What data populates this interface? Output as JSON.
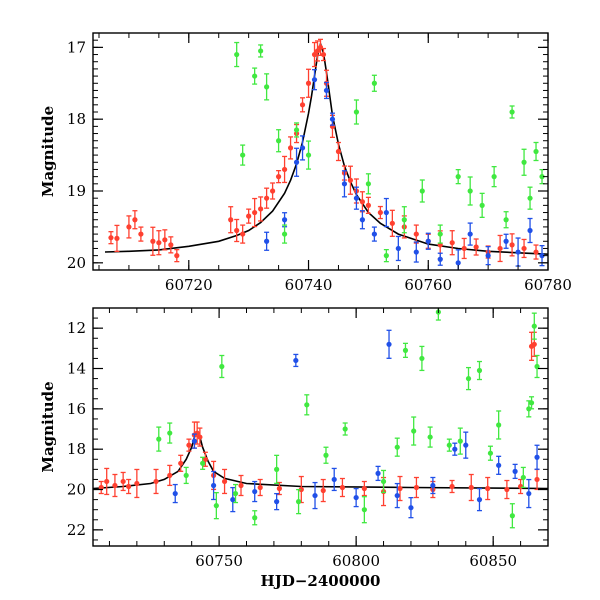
{
  "chart_data": [
    {
      "type": "scatter",
      "title": "",
      "xlabel": "",
      "ylabel": "Magnitude",
      "xlim": [
        60704,
        60780
      ],
      "ylim": [
        20.1,
        16.8
      ],
      "y_inverted": true,
      "x_ticks": [
        60720,
        60740,
        60760,
        60780
      ],
      "y_ticks": [
        17,
        18,
        19,
        20
      ],
      "model_curve": {
        "name": "",
        "color": "#000000",
        "x": [
          60706,
          60710,
          60715,
          60720,
          60725,
          60728,
          60730,
          60732,
          60734,
          60736,
          60737,
          60738,
          60739,
          60740,
          60740.5,
          60741,
          60741.5,
          60742,
          60742.5,
          60743,
          60743.5,
          60744,
          60745,
          60746,
          60747,
          60748,
          60750,
          60752,
          60755,
          60760,
          60765,
          60770,
          60775,
          60780
        ],
        "y": [
          19.85,
          19.84,
          19.82,
          19.77,
          19.7,
          19.62,
          19.55,
          19.44,
          19.28,
          19.03,
          18.85,
          18.62,
          18.32,
          17.92,
          17.68,
          17.4,
          17.12,
          16.95,
          17.08,
          17.35,
          17.65,
          17.95,
          18.35,
          18.65,
          18.87,
          19.05,
          19.3,
          19.45,
          19.6,
          19.74,
          19.8,
          19.84,
          19.86,
          19.88
        ]
      },
      "series": [
        {
          "color": "#ff4030",
          "x": [
            60707,
            60708,
            60710,
            60711,
            60712,
            60714,
            60715,
            60716,
            60717,
            60718,
            60727,
            60728,
            60729,
            60730,
            60731,
            60732,
            60733,
            60734,
            60735,
            60736,
            60737,
            60738,
            60739,
            60740,
            60741,
            60741.5,
            60742,
            60742.5,
            60743,
            60744,
            60745,
            60746,
            60747,
            60748,
            60749,
            60750,
            60752,
            60754,
            60756,
            60758,
            60760,
            60762,
            60764,
            60766,
            60768,
            60770,
            60772,
            60774,
            60776,
            60778
          ],
          "y": [
            19.65,
            19.66,
            19.5,
            19.4,
            19.6,
            19.7,
            19.72,
            19.68,
            19.75,
            19.9,
            19.4,
            19.55,
            19.6,
            19.35,
            19.3,
            19.25,
            19.1,
            19.0,
            18.8,
            18.7,
            18.4,
            18.2,
            17.8,
            17.5,
            17.1,
            17.05,
            17.0,
            17.1,
            17.5,
            18.1,
            18.45,
            18.75,
            18.85,
            19.0,
            19.15,
            19.2,
            19.3,
            19.45,
            19.5,
            19.6,
            19.7,
            19.75,
            19.72,
            19.8,
            19.78,
            19.85,
            19.8,
            19.75,
            19.8,
            19.85
          ]
        },
        {
          "color": "#2050e8",
          "x": [
            60733,
            60736,
            60738,
            60739,
            60741,
            60743,
            60744,
            60746,
            60748,
            60749,
            60751,
            60753,
            60755,
            60758,
            60760,
            60762,
            60765,
            60767,
            60770,
            60773,
            60775,
            60777,
            60779
          ],
          "y": [
            19.7,
            19.4,
            18.6,
            18.4,
            17.45,
            17.6,
            18.0,
            18.9,
            19.1,
            19.4,
            19.6,
            19.3,
            19.8,
            19.85,
            19.7,
            19.95,
            20.0,
            19.6,
            19.9,
            19.7,
            19.85,
            19.55,
            19.9
          ]
        },
        {
          "color": "#40e840",
          "x": [
            60728,
            60729,
            60731,
            60732,
            60733,
            60735,
            60736,
            60738,
            60740,
            60748,
            60750,
            60751,
            60753,
            60756,
            60759,
            60762,
            60765,
            60767,
            60769,
            60771,
            60773,
            60774,
            60776,
            60777,
            60778,
            60779
          ],
          "y": [
            17.1,
            18.5,
            17.4,
            17.05,
            17.55,
            18.3,
            19.6,
            18.15,
            18.5,
            17.9,
            18.9,
            17.5,
            19.9,
            19.4,
            19.0,
            19.6,
            18.8,
            19.0,
            19.2,
            18.8,
            19.4,
            17.9,
            18.6,
            19.1,
            18.45,
            18.8
          ]
        }
      ]
    },
    {
      "type": "scatter",
      "title": "",
      "xlabel": "HJD−2400000",
      "ylabel": "Magnitude",
      "xlim": [
        60704,
        60870
      ],
      "ylim": [
        22.8,
        11.0
      ],
      "y_inverted": true,
      "x_ticks": [
        60750,
        60800,
        60850
      ],
      "y_ticks": [
        12,
        14,
        16,
        18,
        20,
        22
      ],
      "model_curve": {
        "name": "",
        "color": "#000000",
        "x": [
          60704,
          60715,
          60725,
          60730,
          60735,
          60738,
          60740,
          60741,
          60742,
          60743,
          60744,
          60746,
          60748,
          60752,
          60760,
          60780,
          60820,
          60870
        ],
        "y": [
          19.95,
          19.85,
          19.7,
          19.5,
          19.1,
          18.5,
          17.9,
          17.4,
          17.2,
          17.4,
          17.9,
          18.6,
          19.1,
          19.45,
          19.7,
          19.85,
          19.9,
          19.95
        ]
      },
      "series": [
        {
          "color": "#ff4030",
          "x": [
            60707,
            60709,
            60712,
            60715,
            60717,
            60720,
            60727,
            60732,
            60736,
            60739,
            60741,
            60742,
            60743,
            60745,
            60748,
            60752,
            60758,
            60765,
            60772,
            60780,
            60788,
            60795,
            60803,
            60810,
            60816,
            60822,
            60828,
            60835,
            60842,
            60848,
            60855,
            60860,
            60864,
            60865,
            60866
          ],
          "y": [
            19.9,
            19.6,
            19.8,
            19.6,
            19.85,
            19.7,
            19.6,
            19.3,
            18.7,
            17.8,
            17.3,
            17.2,
            17.4,
            18.5,
            19.3,
            19.6,
            19.8,
            19.9,
            19.95,
            20.0,
            20.05,
            19.9,
            19.95,
            20.1,
            19.95,
            19.9,
            20.0,
            19.85,
            19.9,
            19.95,
            20.0,
            19.85,
            12.9,
            12.8,
            19.5
          ]
        },
        {
          "color": "#2050e8",
          "x": [
            60734,
            60741,
            60748,
            60755,
            60763,
            60771,
            60778,
            60785,
            60792,
            60800,
            60808,
            60812,
            60815,
            60820,
            60828,
            60836,
            60840,
            60845,
            60852,
            60858,
            60863,
            60866
          ],
          "y": [
            20.2,
            17.6,
            19.8,
            20.5,
            20.1,
            20.6,
            13.6,
            20.3,
            19.5,
            20.4,
            19.2,
            12.8,
            20.3,
            20.9,
            19.8,
            18.0,
            17.8,
            20.5,
            18.8,
            19.1,
            20.2,
            18.4
          ]
        },
        {
          "color": "#40e840",
          "x": [
            60728,
            60732,
            60738,
            60744,
            60749,
            60751,
            60756,
            60763,
            60771,
            60779,
            60782,
            60789,
            60796,
            60803,
            60810,
            60815,
            60818,
            60821,
            60824,
            60827,
            60830,
            60834,
            60838,
            60841,
            60845,
            60849,
            60852,
            60857,
            60861,
            60863,
            60864,
            60865,
            60866
          ],
          "y": [
            17.5,
            17.2,
            19.3,
            18.7,
            20.8,
            13.9,
            20.2,
            21.4,
            19.0,
            20.6,
            15.8,
            18.3,
            17.0,
            21.0,
            19.6,
            17.9,
            13.1,
            17.1,
            13.5,
            17.4,
            11.2,
            17.8,
            17.6,
            14.5,
            14.1,
            18.2,
            16.8,
            21.3,
            19.4,
            16.0,
            15.7,
            11.9,
            13.9
          ]
        }
      ]
    }
  ]
}
